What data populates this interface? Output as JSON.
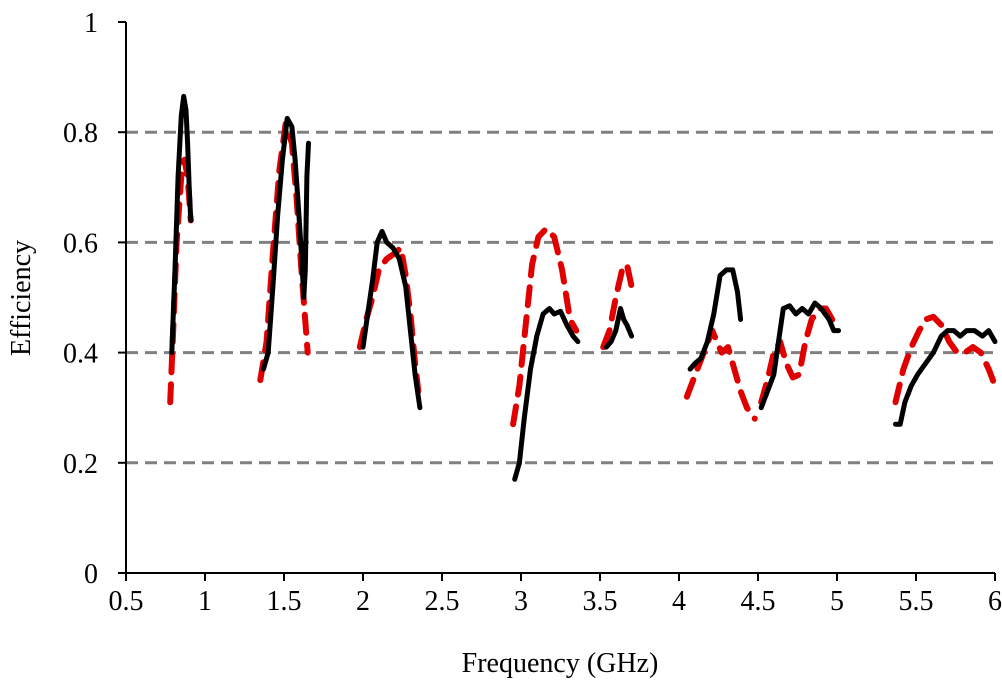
{
  "chart_data": {
    "type": "line",
    "xlabel": "Frequency (GHz)",
    "ylabel": "Efficiency",
    "xlim": [
      0.5,
      6
    ],
    "ylim": [
      0,
      1
    ],
    "x_ticks": [
      "0.5",
      "1",
      "1.5",
      "2",
      "2.5",
      "3",
      "3.5",
      "4",
      "4.5",
      "5",
      "5.5",
      "6"
    ],
    "y_ticks": [
      "0",
      "0.2",
      "0.4",
      "0.6",
      "0.8",
      "1"
    ],
    "grid": "horizontal dashed",
    "colors": {
      "solid": "#000000",
      "dashed": "#e00000",
      "grid": "#808080"
    },
    "series": [
      {
        "style": "solid",
        "segments": [
          [
            [
              0.79,
              0.4
            ],
            [
              0.81,
              0.55
            ],
            [
              0.83,
              0.72
            ],
            [
              0.85,
              0.83
            ],
            [
              0.865,
              0.865
            ],
            [
              0.88,
              0.84
            ],
            [
              0.89,
              0.78
            ],
            [
              0.9,
              0.7
            ],
            [
              0.91,
              0.64
            ]
          ],
          [
            [
              1.37,
              0.37
            ],
            [
              1.4,
              0.4
            ],
            [
              1.43,
              0.52
            ],
            [
              1.46,
              0.65
            ],
            [
              1.49,
              0.75
            ],
            [
              1.52,
              0.825
            ],
            [
              1.55,
              0.81
            ],
            [
              1.57,
              0.75
            ],
            [
              1.59,
              0.67
            ],
            [
              1.61,
              0.58
            ],
            [
              1.625,
              0.5
            ],
            [
              1.635,
              0.55
            ],
            [
              1.645,
              0.72
            ],
            [
              1.655,
              0.78
            ]
          ],
          [
            [
              2.0,
              0.41
            ],
            [
              2.03,
              0.47
            ],
            [
              2.06,
              0.53
            ],
            [
              2.09,
              0.6
            ],
            [
              2.12,
              0.62
            ],
            [
              2.15,
              0.6
            ],
            [
              2.19,
              0.59
            ],
            [
              2.23,
              0.57
            ],
            [
              2.27,
              0.52
            ],
            [
              2.3,
              0.44
            ],
            [
              2.33,
              0.36
            ],
            [
              2.36,
              0.3
            ]
          ],
          [
            [
              2.96,
              0.17
            ],
            [
              2.99,
              0.2
            ],
            [
              3.02,
              0.28
            ],
            [
              3.06,
              0.37
            ],
            [
              3.1,
              0.43
            ],
            [
              3.14,
              0.47
            ],
            [
              3.18,
              0.48
            ],
            [
              3.21,
              0.47
            ],
            [
              3.25,
              0.475
            ],
            [
              3.29,
              0.45
            ],
            [
              3.33,
              0.43
            ],
            [
              3.36,
              0.42
            ]
          ],
          [
            [
              3.54,
              0.41
            ],
            [
              3.57,
              0.42
            ],
            [
              3.6,
              0.44
            ],
            [
              3.63,
              0.48
            ],
            [
              3.65,
              0.46
            ],
            [
              3.67,
              0.45
            ],
            [
              3.7,
              0.43
            ]
          ],
          [
            [
              4.07,
              0.37
            ],
            [
              4.1,
              0.38
            ],
            [
              4.14,
              0.39
            ],
            [
              4.18,
              0.42
            ],
            [
              4.22,
              0.47
            ],
            [
              4.26,
              0.54
            ],
            [
              4.3,
              0.55
            ],
            [
              4.34,
              0.55
            ],
            [
              4.37,
              0.51
            ],
            [
              4.39,
              0.46
            ]
          ],
          [
            [
              4.52,
              0.3
            ],
            [
              4.56,
              0.33
            ],
            [
              4.6,
              0.36
            ],
            [
              4.63,
              0.42
            ],
            [
              4.66,
              0.48
            ],
            [
              4.7,
              0.485
            ],
            [
              4.74,
              0.47
            ],
            [
              4.78,
              0.48
            ],
            [
              4.82,
              0.47
            ],
            [
              4.86,
              0.49
            ],
            [
              4.9,
              0.48
            ],
            [
              4.95,
              0.46
            ],
            [
              4.98,
              0.44
            ],
            [
              5.01,
              0.44
            ]
          ],
          [
            [
              5.37,
              0.27
            ],
            [
              5.4,
              0.27
            ],
            [
              5.43,
              0.31
            ],
            [
              5.47,
              0.34
            ],
            [
              5.51,
              0.36
            ],
            [
              5.56,
              0.38
            ],
            [
              5.61,
              0.4
            ],
            [
              5.66,
              0.43
            ],
            [
              5.7,
              0.44
            ],
            [
              5.74,
              0.44
            ],
            [
              5.78,
              0.43
            ],
            [
              5.82,
              0.44
            ],
            [
              5.87,
              0.44
            ],
            [
              5.92,
              0.43
            ],
            [
              5.96,
              0.44
            ],
            [
              6.0,
              0.42
            ]
          ]
        ]
      },
      {
        "style": "dashed",
        "segments": [
          [
            [
              0.78,
              0.31
            ],
            [
              0.8,
              0.45
            ],
            [
              0.82,
              0.6
            ],
            [
              0.85,
              0.72
            ],
            [
              0.87,
              0.75
            ],
            [
              0.89,
              0.72
            ],
            [
              0.91,
              0.64
            ]
          ],
          [
            [
              1.35,
              0.35
            ],
            [
              1.39,
              0.42
            ],
            [
              1.43,
              0.58
            ],
            [
              1.47,
              0.73
            ],
            [
              1.51,
              0.815
            ],
            [
              1.55,
              0.78
            ],
            [
              1.58,
              0.68
            ],
            [
              1.61,
              0.55
            ],
            [
              1.65,
              0.4
            ]
          ],
          [
            [
              1.98,
              0.41
            ],
            [
              2.02,
              0.46
            ],
            [
              2.06,
              0.5
            ],
            [
              2.1,
              0.55
            ],
            [
              2.15,
              0.57
            ],
            [
              2.2,
              0.58
            ],
            [
              2.24,
              0.59
            ],
            [
              2.27,
              0.54
            ],
            [
              2.3,
              0.47
            ],
            [
              2.33,
              0.38
            ],
            [
              2.35,
              0.33
            ]
          ],
          [
            [
              2.95,
              0.27
            ],
            [
              2.99,
              0.34
            ],
            [
              3.03,
              0.45
            ],
            [
              3.07,
              0.56
            ],
            [
              3.11,
              0.61
            ],
            [
              3.16,
              0.625
            ],
            [
              3.21,
              0.61
            ],
            [
              3.26,
              0.55
            ],
            [
              3.31,
              0.46
            ],
            [
              3.35,
              0.44
            ]
          ],
          [
            [
              3.52,
              0.41
            ],
            [
              3.56,
              0.44
            ],
            [
              3.6,
              0.5
            ],
            [
              3.64,
              0.55
            ],
            [
              3.67,
              0.56
            ],
            [
              3.7,
              0.52
            ]
          ],
          [
            [
              4.05,
              0.32
            ],
            [
              4.09,
              0.35
            ],
            [
              4.13,
              0.38
            ],
            [
              4.17,
              0.41
            ],
            [
              4.21,
              0.44
            ],
            [
              4.24,
              0.42
            ],
            [
              4.27,
              0.4
            ],
            [
              4.31,
              0.41
            ],
            [
              4.35,
              0.37
            ],
            [
              4.39,
              0.33
            ],
            [
              4.43,
              0.3
            ],
            [
              4.48,
              0.28
            ]
          ],
          [
            [
              4.52,
              0.31
            ],
            [
              4.56,
              0.35
            ],
            [
              4.6,
              0.4
            ],
            [
              4.64,
              0.42
            ],
            [
              4.68,
              0.38
            ],
            [
              4.72,
              0.355
            ],
            [
              4.76,
              0.36
            ],
            [
              4.8,
              0.42
            ],
            [
              4.84,
              0.46
            ],
            [
              4.89,
              0.48
            ],
            [
              4.93,
              0.48
            ],
            [
              4.97,
              0.46
            ]
          ],
          [
            [
              5.37,
              0.31
            ],
            [
              5.42,
              0.37
            ],
            [
              5.47,
              0.41
            ],
            [
              5.52,
              0.44
            ],
            [
              5.56,
              0.46
            ],
            [
              5.61,
              0.465
            ],
            [
              5.66,
              0.45
            ],
            [
              5.71,
              0.42
            ],
            [
              5.76,
              0.4
            ],
            [
              5.81,
              0.4
            ],
            [
              5.86,
              0.41
            ],
            [
              5.91,
              0.4
            ],
            [
              5.96,
              0.37
            ],
            [
              6.0,
              0.34
            ]
          ]
        ]
      }
    ]
  }
}
